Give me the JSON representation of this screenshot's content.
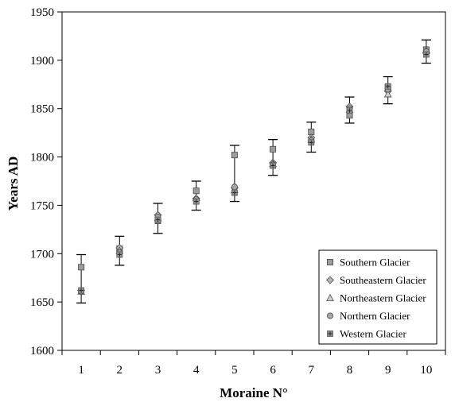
{
  "chart_data": {
    "type": "scatter",
    "title": "",
    "xlabel": "Moraine N°",
    "ylabel": "Years AD",
    "xlim": [
      0.5,
      10.5
    ],
    "ylim": [
      1600,
      1950
    ],
    "x_ticks": [
      "1",
      "2",
      "3",
      "4",
      "5",
      "6",
      "7",
      "8",
      "9",
      "10"
    ],
    "y_ticks": [
      "1600",
      "1650",
      "1700",
      "1750",
      "1800",
      "1850",
      "1900",
      "1950"
    ],
    "grid": false,
    "legend_position": "bottom-right",
    "x": [
      1,
      2,
      3,
      4,
      5,
      6,
      7,
      8,
      9,
      10
    ],
    "error_bars": [
      {
        "x": 1,
        "low": 1649,
        "high": 1699
      },
      {
        "x": 2,
        "low": 1688,
        "high": 1718
      },
      {
        "x": 3,
        "low": 1721,
        "high": 1752
      },
      {
        "x": 4,
        "low": 1745,
        "high": 1775
      },
      {
        "x": 5,
        "low": 1754,
        "high": 1812
      },
      {
        "x": 6,
        "low": 1781,
        "high": 1818
      },
      {
        "x": 7,
        "low": 1805,
        "high": 1836
      },
      {
        "x": 8,
        "low": 1835,
        "high": 1862
      },
      {
        "x": 9,
        "low": 1855,
        "high": 1883
      },
      {
        "x": 10,
        "low": 1897,
        "high": 1921
      }
    ],
    "series": [
      {
        "name": "Southern Glacier",
        "marker": "square",
        "color": "#9c9c9c",
        "values": [
          1686,
          1705,
          1734,
          1765,
          1802,
          1808,
          1826,
          1843,
          1872,
          1911
        ]
      },
      {
        "name": "Southeastern Glacier",
        "marker": "diamond",
        "color": "#b4b4b4",
        "values": [
          1662,
          1706,
          1740,
          1757,
          1768,
          1794,
          1820,
          1852,
          1868,
          1908
        ]
      },
      {
        "name": "Northeastern Glacier",
        "marker": "triangle",
        "color": "#cfcfcf",
        "values": [
          1661,
          1703,
          1737,
          1758,
          1766,
          1793,
          1818,
          1849,
          1865,
          1910
        ]
      },
      {
        "name": "Northern Glacier",
        "marker": "circle",
        "color": "#a6a6a6",
        "values": [
          1661,
          1701,
          1738,
          1756,
          1769,
          1792,
          1817,
          1850,
          1870,
          1909
        ]
      },
      {
        "name": "Western Glacier",
        "marker": "asterisk",
        "color": "#8c8c8c",
        "values": [
          1662,
          1699,
          1735,
          1754,
          1763,
          1791,
          1815,
          1848,
          1873,
          1906
        ]
      }
    ]
  }
}
